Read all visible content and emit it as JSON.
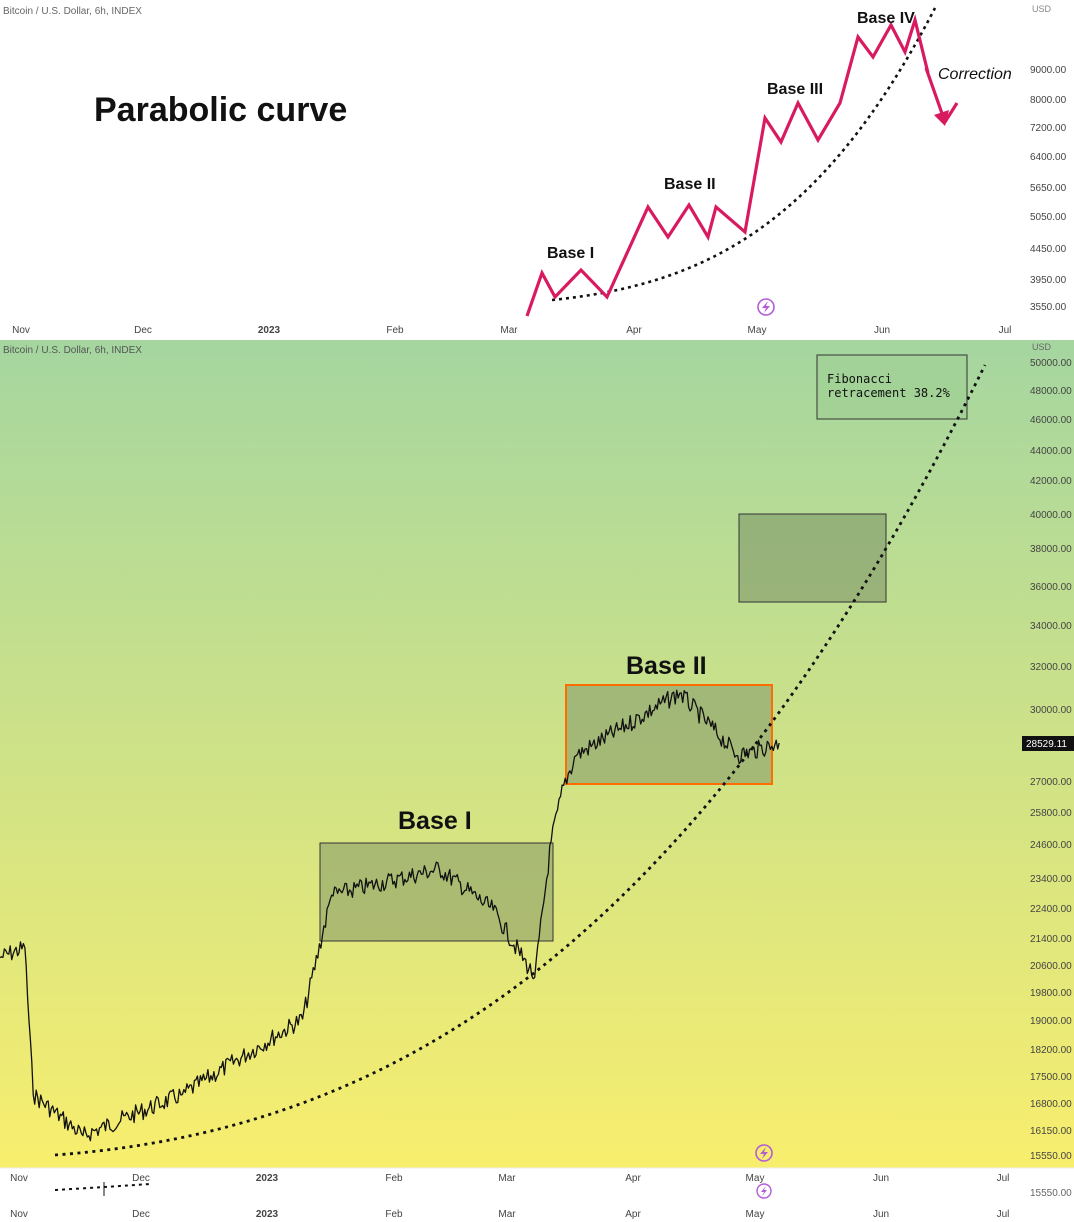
{
  "top_panel": {
    "symbol": "Bitcoin / U.S. Dollar, 6h, INDEX",
    "currency": "USD",
    "heading": "Parabolic curve",
    "x_labels": [
      "Nov",
      "Dec",
      "2023",
      "Feb",
      "Mar",
      "Apr",
      "May",
      "Jun",
      "Jul"
    ],
    "y_labels": [
      "9000.00",
      "8000.00",
      "7200.00",
      "6400.00",
      "5650.00",
      "5050.00",
      "4450.00",
      "3950.00",
      "3550.00"
    ],
    "annotations": {
      "base1": "Base I",
      "base2": "Base II",
      "base3": "Base III",
      "base4": "Base IV",
      "correction": "Correction"
    },
    "colors": {
      "zigzag": "#d81b60",
      "curve": "#111111"
    },
    "icon": "lightning-icon"
  },
  "main_panel": {
    "symbol": "Bitcoin / U.S. Dollar, 6h, INDEX",
    "currency": "USD",
    "y_labels": [
      "50000.00",
      "48000.00",
      "46000.00",
      "44000.00",
      "42000.00",
      "40000.00",
      "38000.00",
      "36000.00",
      "34000.00",
      "32000.00",
      "30000.00",
      "27000.00",
      "25800.00",
      "24600.00",
      "23400.00",
      "22400.00",
      "21400.00",
      "20600.00",
      "19800.00",
      "19000.00",
      "18200.00",
      "17500.00",
      "16800.00",
      "16150.00",
      "15550.00"
    ],
    "current_price": "28529.11",
    "x_labels": [
      "Nov",
      "Dec",
      "2023",
      "Feb",
      "Mar",
      "Apr",
      "May",
      "Jun",
      "Jul"
    ],
    "bottom_price": "15550.00",
    "labels": {
      "base1": "Base I",
      "base2": "Base II",
      "fibonacci_line1": "Fibonacci",
      "fibonacci_line2": "retracement 38.2%"
    },
    "colors": {
      "gradient_top": "#a5d6a0",
      "gradient_bottom": "#f8ee6e",
      "box_fill": "#7a8f66",
      "base2_border": "#ff6d00",
      "price_tag_bg": "#111111"
    },
    "icon": "lightning-icon"
  },
  "chart_data": {
    "type": "line",
    "x": [
      "2022-11-01",
      "2022-11-07",
      "2022-11-09",
      "2022-11-21",
      "2022-12-15",
      "2023-01-13",
      "2023-01-20",
      "2023-02-15",
      "2023-02-28",
      "2023-03-10",
      "2023-03-14",
      "2023-03-17",
      "2023-03-20",
      "2023-04-14",
      "2023-04-28",
      "2023-05-08"
    ],
    "y": [
      20800,
      21100,
      17000,
      16000,
      17000,
      19000,
      22800,
      23700,
      22300,
      20200,
      24700,
      26800,
      28000,
      30700,
      28000,
      28529
    ],
    "ylim": [
      15550,
      50000
    ],
    "y_scale": "log",
    "grid": false,
    "annotations": [
      "Base I",
      "Base II",
      "Fibonacci retracement 38.2%"
    ]
  }
}
